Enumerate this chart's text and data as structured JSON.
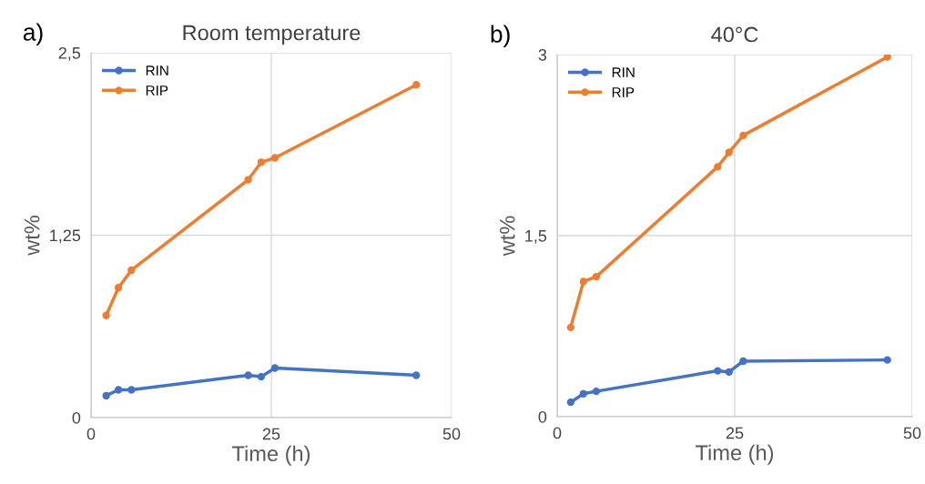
{
  "chart_data": [
    {
      "type": "line",
      "title": "Room temperature",
      "xlabel": "Time (h)",
      "ylabel": "wt%",
      "annotations": [
        "a)"
      ],
      "x": [
        2.1,
        3.8,
        5.6,
        21.8,
        23.6,
        25.5,
        45.1
      ],
      "series": [
        {
          "name": "RIN",
          "color": "#4472c4",
          "values": [
            0.15,
            0.19,
            0.19,
            0.29,
            0.28,
            0.34,
            0.29
          ]
        },
        {
          "name": "RIP",
          "color": "#ed7d31",
          "values": [
            0.7,
            0.89,
            1.01,
            1.63,
            1.75,
            1.78,
            2.28
          ]
        }
      ],
      "xlim": [
        0,
        50
      ],
      "xticks": [
        0,
        25,
        50
      ],
      "ylim": [
        0,
        2.5
      ],
      "yticks": [
        0,
        {
          "value": 1.25,
          "label": "1,25"
        },
        {
          "value": 2.5,
          "label": "2,5"
        }
      ],
      "grid": true,
      "legend": "top left",
      "marker": "circle",
      "line_style": "solid"
    },
    {
      "type": "line",
      "title": "40°C",
      "xlabel": "Time (h)",
      "ylabel": "wt%",
      "annotations": [
        "b)"
      ],
      "x": [
        1.9,
        3.7,
        5.5,
        22.6,
        24.2,
        26.2,
        46.5
      ],
      "series": [
        {
          "name": "RIN",
          "color": "#4472c4",
          "values": [
            0.12,
            0.19,
            0.21,
            0.38,
            0.37,
            0.46,
            0.47
          ]
        },
        {
          "name": "RIP",
          "color": "#ed7d31",
          "values": [
            0.74,
            1.12,
            1.16,
            2.07,
            2.19,
            2.33,
            2.98
          ]
        }
      ],
      "xlim": [
        0,
        50
      ],
      "xticks": [
        0,
        25,
        50
      ],
      "ylim": [
        0,
        3
      ],
      "yticks": [
        0,
        {
          "value": 1.5,
          "label": "1,5"
        },
        3
      ],
      "grid": true,
      "legend": "top left",
      "marker": "circle",
      "line_style": "solid"
    }
  ]
}
